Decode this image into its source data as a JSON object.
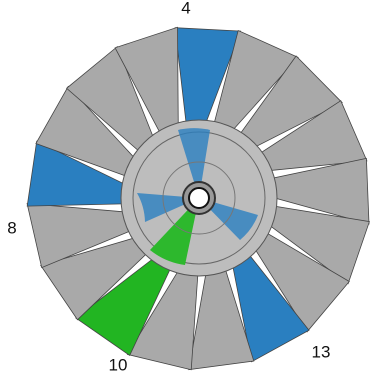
{
  "labels": [
    "4",
    "8",
    "10",
    "13"
  ]
}
